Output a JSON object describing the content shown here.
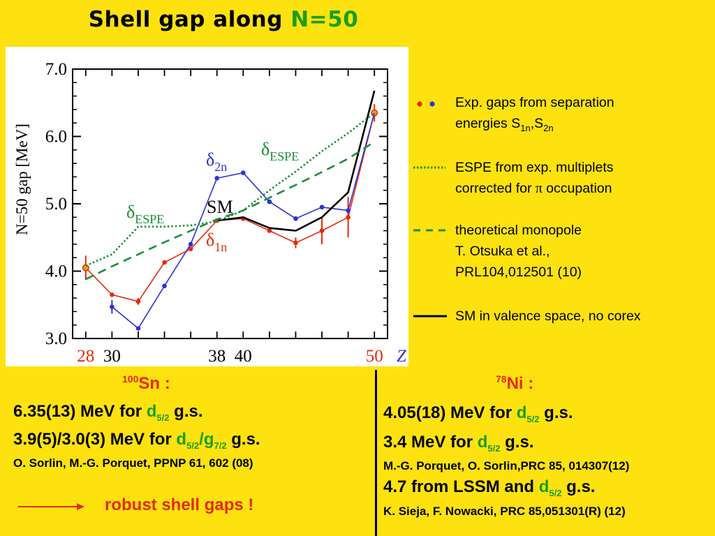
{
  "title": {
    "main": "Shell gap along",
    "accent": "N=50"
  },
  "chart_data": {
    "type": "line",
    "ylabel": "N=50 gap [MeV]",
    "xlabel": "Z",
    "ylim": [
      3.0,
      7.0
    ],
    "xlim": [
      27,
      51
    ],
    "yticks": [
      {
        "value": 3.0,
        "label": "3.0"
      },
      {
        "value": 4.0,
        "label": "4.0"
      },
      {
        "value": 5.0,
        "label": "5.0"
      },
      {
        "value": 6.0,
        "label": "6.0"
      },
      {
        "value": 7.0,
        "label": "7.0"
      }
    ],
    "xticks": [
      {
        "value": 28,
        "label": "28",
        "color": "#E8290B"
      },
      {
        "value": 30,
        "label": "30",
        "color": "#000000"
      },
      {
        "value": 38,
        "label": "38",
        "color": "#000000"
      },
      {
        "value": 40,
        "label": "40",
        "color": "#000000"
      },
      {
        "value": 50,
        "label": "50",
        "color": "#E8290B"
      }
    ],
    "xminor": [
      28,
      30,
      32,
      34,
      36,
      38,
      40,
      42,
      44,
      46,
      48,
      50
    ],
    "series": [
      {
        "id": "d1n",
        "color": "#E8290B",
        "points": [
          [
            28,
            4.05
          ],
          [
            30,
            3.65
          ],
          [
            32,
            3.55
          ],
          [
            34,
            4.13
          ],
          [
            36,
            4.33
          ],
          [
            38,
            4.75
          ],
          [
            40,
            4.78
          ],
          [
            42,
            4.6
          ],
          [
            44,
            4.42
          ],
          [
            46,
            4.6
          ],
          [
            48,
            4.8
          ],
          [
            50,
            6.35
          ]
        ],
        "errors": [
          0.18,
          0,
          0.05,
          0,
          0,
          0,
          0,
          0,
          0.08,
          0.2,
          0.3,
          0.13
        ]
      },
      {
        "id": "d2n",
        "color": "#2B32D6",
        "points": [
          [
            30,
            3.47
          ],
          [
            32,
            3.15
          ],
          [
            34,
            3.78
          ],
          [
            36,
            4.4
          ],
          [
            38,
            5.38
          ],
          [
            40,
            5.46
          ],
          [
            42,
            5.03
          ],
          [
            44,
            4.78
          ],
          [
            46,
            4.95
          ],
          [
            48,
            4.9
          ],
          [
            50,
            6.35
          ]
        ],
        "errors": [
          0.1,
          0,
          0,
          0,
          0,
          0,
          0,
          0,
          0,
          0,
          0
        ]
      },
      {
        "id": "sm",
        "color": "#000000",
        "points": [
          [
            38,
            4.75
          ],
          [
            40,
            4.8
          ],
          [
            42,
            4.64
          ],
          [
            44,
            4.6
          ],
          [
            46,
            4.8
          ],
          [
            48,
            5.17
          ],
          [
            50,
            6.68
          ]
        ]
      },
      {
        "id": "espe-dotted",
        "color": "#1B8F3A",
        "dash": "dotted",
        "points": [
          [
            28,
            4.08
          ],
          [
            30,
            4.25
          ],
          [
            32,
            4.66
          ],
          [
            34,
            4.66
          ],
          [
            36,
            4.68
          ],
          [
            38,
            4.74
          ],
          [
            40,
            4.9
          ],
          [
            42,
            5.2
          ],
          [
            44,
            5.48
          ],
          [
            46,
            5.78
          ],
          [
            48,
            6.05
          ],
          [
            50,
            6.35
          ]
        ]
      },
      {
        "id": "monopole-dashed",
        "color": "#1B8F3A",
        "dash": "dashed",
        "points": [
          [
            28,
            3.88
          ],
          [
            30,
            4.07
          ],
          [
            32,
            4.25
          ],
          [
            34,
            4.43
          ],
          [
            36,
            4.6
          ],
          [
            38,
            4.77
          ],
          [
            40,
            4.9
          ],
          [
            42,
            5.09
          ],
          [
            44,
            5.28
          ],
          [
            46,
            5.47
          ],
          [
            48,
            5.67
          ],
          [
            50,
            5.92
          ]
        ]
      }
    ],
    "annotations": [
      {
        "id": "espe-top",
        "text": "δ",
        "sub": "ESPE",
        "color": "#1B8F3A"
      },
      {
        "id": "espe-left",
        "text": "δ",
        "sub": "ESPE",
        "color": "#1B8F3A"
      },
      {
        "id": "d2n",
        "text": "δ",
        "sub": "2n",
        "color": "#2B32D6"
      },
      {
        "id": "sm",
        "text": "SM",
        "sub": "",
        "color": "#000000"
      },
      {
        "id": "d1n",
        "text": "δ",
        "sub": "1n",
        "color": "#E8290B"
      }
    ]
  },
  "legend": [
    {
      "id": "exp",
      "lines": [
        "Exp. gaps from separation",
        "energies S",
        "1n",
        ",S",
        "2n"
      ]
    },
    {
      "id": "espe",
      "lines": [
        "ESPE from exp. multiplets",
        "corrected for ",
        "π",
        " occupation"
      ]
    },
    {
      "id": "mono",
      "lines": [
        "theoretical monopole",
        "T. Otsuka et al.,",
        "PRL104,012501 (10)"
      ]
    },
    {
      "id": "sm",
      "lines": [
        "SM in valence space, no corex"
      ]
    }
  ],
  "left": {
    "mass": "100",
    "nucleus": "Sn :",
    "line1_pre": "6.35(13) MeV for ",
    "line1_orb": "d",
    "line1_sub": "5/2",
    "line1_post": " g.s.",
    "line2_pre": "3.9(5)/3.0(3) MeV for ",
    "line2_orb1": "d",
    "line2_sub1": "5/2",
    "line2_slash": "/",
    "line2_orb2": "g",
    "line2_sub2": "7/2",
    "line2_post": " g.s.",
    "ref": "O. Sorlin, M.-G. Porquet, PPNP 61, 602 (08)",
    "conclusion": "robust shell gaps !"
  },
  "right": {
    "mass": "78",
    "nucleus": "Ni :",
    "line1_pre": "4.05(18) MeV for ",
    "line1_orb": "d",
    "line1_sub": "5/2",
    "line1_post": " g.s.",
    "line2_pre": "3.4 MeV for ",
    "line2_orb": "d",
    "line2_sub": "5/2",
    "line2_post": " g.s.",
    "ref1": "M.-G. Porquet, O. Sorlin,PRC 85, 014307(12)",
    "line3_pre": "4.7 from LSSM and ",
    "line3_orb": "d",
    "line3_sub": "5/2",
    "line3_post": " g.s.",
    "ref2": "K. Sieja, F. Nowacki, PRC 85,051301(R) (12)"
  },
  "colors": {
    "background": "#FDE20F",
    "red": "#E8290B",
    "blue": "#2B32D6",
    "green": "#1B8F3A"
  }
}
